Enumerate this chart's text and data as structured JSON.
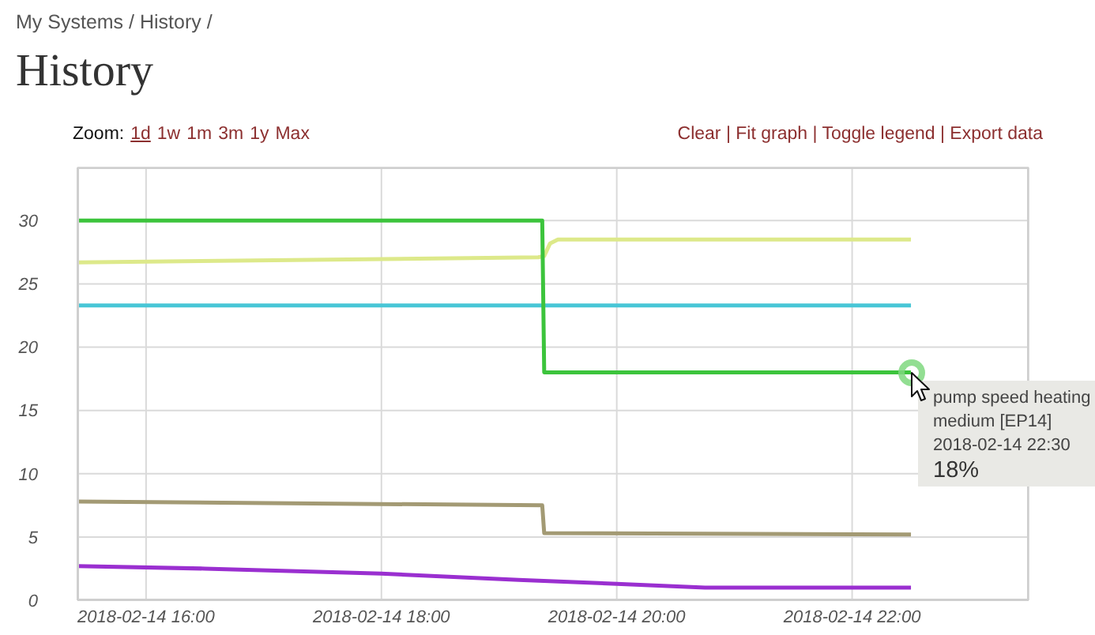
{
  "chart_data": {
    "type": "line",
    "title": "History",
    "annotations": [
      "My Systems / History /",
      "Zoom: 1d 1w 1m 3m 1y Max",
      "Clear | Fit graph | Toggle legend | Export data",
      {
        "text": "pump speed heating medium [EP14]\n2018-02-14 22:30\n18%",
        "x": "2018-02-14T22:30",
        "y": 18
      }
    ],
    "xlim": [
      "2018-02-14T15:25",
      "2018-02-14T23:30"
    ],
    "xticks": [
      {
        "value": "2018-02-14T16:00",
        "label": "2018-02-14 16:00"
      },
      {
        "value": "2018-02-14T18:00",
        "label": "2018-02-14 18:00"
      },
      {
        "value": "2018-02-14T20:00",
        "label": "2018-02-14 20:00"
      },
      {
        "value": "2018-02-14T22:00",
        "label": "2018-02-14 22:00"
      }
    ],
    "ylim": [
      0,
      34.2
    ],
    "yticks": [
      0,
      5,
      10,
      15,
      20,
      25,
      30
    ],
    "grid": true,
    "series": [
      {
        "color": "#dde98a",
        "x": [
          "2018-02-14T15:25",
          "2018-02-14T19:20",
          "2018-02-14T19:23",
          "2018-02-14T19:26",
          "2018-02-14T19:30",
          "2018-02-14T22:30"
        ],
        "values": [
          26.7,
          27.1,
          27.2,
          28.2,
          28.5,
          28.5
        ]
      },
      {
        "color": "#48c6d6",
        "x": [
          "2018-02-14T15:25",
          "2018-02-14T22:30"
        ],
        "values": [
          23.3,
          23.3
        ]
      },
      {
        "color": "#a39a74",
        "x": [
          "2018-02-14T15:25",
          "2018-02-14T19:22",
          "2018-02-14T19:23",
          "2018-02-14T22:30"
        ],
        "values": [
          7.8,
          7.5,
          5.3,
          5.2
        ]
      },
      {
        "color": "#9a2fd0",
        "x": [
          "2018-02-14T15:25",
          "2018-02-14T16:30",
          "2018-02-14T18:00",
          "2018-02-14T19:10",
          "2018-02-14T20:00",
          "2018-02-14T20:45",
          "2018-02-14T22:30"
        ],
        "values": [
          2.7,
          2.5,
          2.1,
          1.6,
          1.3,
          1.0,
          1.0
        ]
      },
      {
        "color": "#3cc43c",
        "x": [
          "2018-02-14T15:25",
          "2018-02-14T19:22",
          "2018-02-14T19:23",
          "2018-02-14T22:30"
        ],
        "values": [
          30,
          30,
          18,
          18
        ]
      }
    ]
  }
}
